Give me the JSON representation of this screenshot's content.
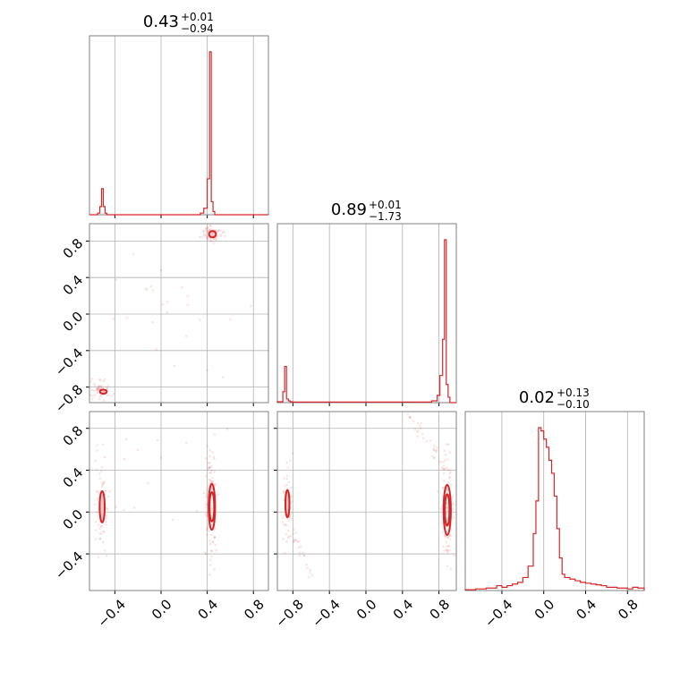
{
  "chart_data": {
    "type": "corner",
    "color": "#d62728",
    "parameters": [
      {
        "median": 0.43,
        "err_plus": 0.01,
        "err_minus": 0.94,
        "title": "0.43",
        "title_sup": "+0.01",
        "title_sub": "−0.94"
      },
      {
        "median": 0.89,
        "err_plus": 0.01,
        "err_minus": 1.73,
        "title": "0.89",
        "title_sup": "+0.01",
        "title_sub": "−1.73"
      },
      {
        "median": 0.02,
        "err_plus": 0.13,
        "err_minus": 0.1,
        "title": "0.02",
        "title_sup": "+0.13",
        "title_sub": "−0.10"
      }
    ],
    "ranges": [
      [
        -0.62,
        0.93
      ],
      [
        -0.97,
        0.99
      ],
      [
        -0.75,
        0.96
      ]
    ],
    "ticks": {
      "p0": {
        "values": [
          -0.4,
          0.0,
          0.4,
          0.8
        ],
        "labels": [
          "−0.4",
          "0.0",
          "0.4",
          "0.8"
        ]
      },
      "p1_x": {
        "values": [
          -0.8,
          -0.4,
          0.0,
          0.4,
          0.8
        ],
        "labels": [
          "−0.8",
          "−0.4",
          "0.0",
          "0.4",
          "0.8"
        ]
      },
      "p1_y": {
        "values": [
          -0.8,
          -0.4,
          0.0,
          0.4,
          0.8
        ],
        "labels": [
          "−0.8",
          "−0.4",
          "0.0",
          "0.4",
          "0.8"
        ]
      },
      "p2": {
        "values": [
          -0.4,
          0.0,
          0.4,
          0.8
        ],
        "labels": [
          "−0.4",
          "0.0",
          "0.4",
          "0.8"
        ]
      }
    },
    "histograms": {
      "p0": {
        "edges": [
          -0.62,
          -0.55,
          -0.53,
          -0.515,
          -0.5,
          -0.485,
          -0.47,
          0.34,
          0.37,
          0.4,
          0.42,
          0.435,
          0.45,
          0.465,
          0.48,
          0.93
        ],
        "counts": [
          0,
          0.01,
          0.05,
          0.16,
          0.05,
          0.01,
          0.0,
          0.01,
          0.04,
          0.22,
          1.0,
          0.08,
          0.02,
          0.0,
          0.0
        ]
      },
      "p1": {
        "edges": [
          -0.97,
          -0.91,
          -0.89,
          -0.87,
          -0.85,
          -0.83,
          -0.81,
          -0.75,
          0.72,
          0.78,
          0.81,
          0.84,
          0.86,
          0.88,
          0.9,
          0.92,
          0.95,
          0.99
        ],
        "counts": [
          0.005,
          0.06,
          0.2,
          0.02,
          0.01,
          0.005,
          0.003,
          0.003,
          0.01,
          0.04,
          0.15,
          0.35,
          0.9,
          0.1,
          0.03,
          0.0,
          0.0
        ]
      },
      "p2": {
        "edges": [
          -0.75,
          -0.65,
          -0.55,
          -0.45,
          -0.4,
          -0.35,
          -0.3,
          -0.25,
          -0.2,
          -0.15,
          -0.1,
          -0.075,
          -0.05,
          -0.025,
          0.0,
          0.025,
          0.05,
          0.075,
          0.1,
          0.125,
          0.15,
          0.175,
          0.2,
          0.25,
          0.3,
          0.35,
          0.4,
          0.45,
          0.5,
          0.55,
          0.6,
          0.65,
          0.7,
          0.75,
          0.8,
          0.85,
          0.9,
          0.96
        ],
        "counts": [
          0.005,
          0.01,
          0.015,
          0.03,
          0.02,
          0.03,
          0.04,
          0.05,
          0.08,
          0.15,
          0.35,
          0.55,
          1.0,
          0.98,
          0.93,
          0.88,
          0.8,
          0.72,
          0.58,
          0.38,
          0.2,
          0.1,
          0.08,
          0.07,
          0.06,
          0.05,
          0.045,
          0.04,
          0.035,
          0.03,
          0.02,
          0.02,
          0.015,
          0.015,
          0.01,
          0.02,
          0.015
        ]
      }
    }
  }
}
